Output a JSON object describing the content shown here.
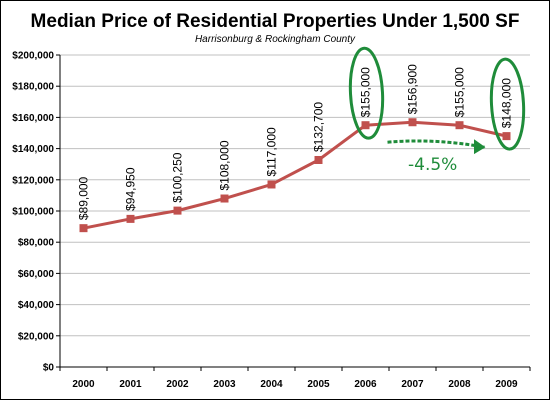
{
  "colors": {
    "line": "#c0504d",
    "marker": "#c0504d",
    "grid": "#c0c0c0",
    "annotation": "#1f8c3a"
  },
  "chart_data": {
    "type": "line",
    "title": "Median Price of Residential Properties Under 1,500 SF",
    "subtitle": "Harrisonburg & Rockingham County",
    "xlabel": "",
    "ylabel": "",
    "categories": [
      "2000",
      "2001",
      "2002",
      "2003",
      "2004",
      "2005",
      "2006",
      "2007",
      "2008",
      "2009"
    ],
    "series": [
      {
        "values": [
          89000,
          94950,
          100250,
          108000,
          117000,
          132700,
          155000,
          156900,
          155000,
          148000
        ]
      }
    ],
    "data_labels": [
      "$89,000",
      "$94,950",
      "$100,250",
      "$108,000",
      "$117,000",
      "$132,700",
      "$155,000",
      "$156,900",
      "$155,000",
      "$148,000"
    ],
    "ylim": [
      0,
      200000
    ],
    "y_ticks": [
      0,
      20000,
      40000,
      60000,
      80000,
      100000,
      120000,
      140000,
      160000,
      180000,
      200000
    ],
    "y_tick_labels": [
      "$0",
      "$20,000",
      "$40,000",
      "$60,000",
      "$80,000",
      "$100,000",
      "$120,000",
      "$140,000",
      "$160,000",
      "$180,000",
      "$200,000"
    ],
    "grid": true,
    "legend": "none",
    "annotations": {
      "change_label": "-4.5%",
      "circled_categories": [
        "2006",
        "2009"
      ]
    }
  }
}
